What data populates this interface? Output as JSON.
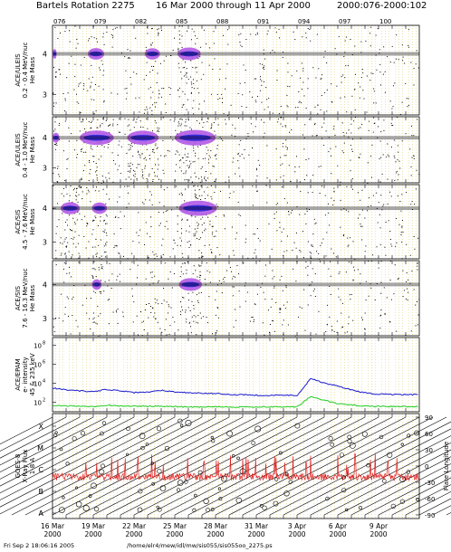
{
  "header": {
    "title": "Bartels Rotation 2275",
    "date_range": "16 Mar 2000 through 11 Apr 2000",
    "doy_range": "2000:076-2000:102"
  },
  "footer": {
    "timestamp": "Fri Sep  2 18:06:16 2005",
    "path": "/home/elr4/mew/idl/mw/sis055/sis055oo_2275.ps"
  },
  "doy_ticks": [
    "076",
    "079",
    "082",
    "085",
    "088",
    "091",
    "094",
    "097",
    "100"
  ],
  "date_ticks": [
    {
      "day": "16 Mar",
      "year": "2000"
    },
    {
      "day": "19 Mar",
      "year": "2000"
    },
    {
      "day": "22 Mar",
      "year": "2000"
    },
    {
      "day": "25 Mar",
      "year": "2000"
    },
    {
      "day": "28 Mar",
      "year": "2000"
    },
    {
      "day": "31 Mar",
      "year": "2000"
    },
    {
      "day": "3 Apr",
      "year": "2000"
    },
    {
      "day": "6 Apr",
      "year": "2000"
    },
    {
      "day": "9 Apr",
      "year": "2000"
    }
  ],
  "colors": {
    "high": "#2222dd",
    "mid": "#b35ae6",
    "scatter": "#000000",
    "grid": "#e0d070",
    "epam_high": "#1a1acc",
    "epam_low": "#22cc22",
    "xray": "#e02020"
  },
  "chart_data": [
    {
      "type": "scatter",
      "ylabel": [
        "ACE/ULEIS",
        "0.2 - 0.4 MeV/nuc",
        "He Mass"
      ],
      "yticks": [
        "4",
        "3"
      ],
      "ylim": [
        2.5,
        4.7
      ],
      "bands": [
        [
          0.0,
          0.3
        ],
        [
          2.6,
          3.8
        ],
        [
          6.8,
          7.9
        ],
        [
          9.2,
          10.9
        ]
      ]
    },
    {
      "type": "scatter",
      "ylabel": [
        "ACE/ULEIS",
        "0.4 - 1.0 MeV/nuc",
        "He Mass"
      ],
      "yticks": [
        "4",
        "3"
      ],
      "ylim": [
        2.5,
        4.7
      ],
      "bands": [
        [
          0.0,
          0.5
        ],
        [
          2.0,
          4.5
        ],
        [
          5.5,
          7.8
        ],
        [
          9.0,
          12.0
        ]
      ]
    },
    {
      "type": "scatter",
      "ylabel": [
        "ACE/SIS",
        "4.5 - 7.6 MeV/nuc",
        "He Mass"
      ],
      "yticks": [
        "4",
        "3"
      ],
      "ylim": [
        2.5,
        4.7
      ],
      "bands": [
        [
          0.6,
          2.0
        ],
        [
          2.9,
          4.0
        ],
        [
          9.3,
          12.1
        ]
      ]
    },
    {
      "type": "scatter",
      "ylabel": [
        "ACE/SIS",
        "7.6 - 16.3 MeV/nuc",
        "He Mass"
      ],
      "yticks": [
        "4",
        "3"
      ],
      "ylim": [
        2.5,
        4.7
      ],
      "bands": [
        [
          2.9,
          3.6
        ],
        [
          9.3,
          11.0
        ]
      ]
    },
    {
      "type": "line",
      "ylabel": [
        "ACE/EPAM",
        "e- intensity",
        "45 & 235 keV"
      ],
      "log_ticks": [
        "10",
        "10",
        "10",
        "10"
      ],
      "log_exps": [
        "8",
        "6",
        "4",
        "2"
      ],
      "series": [
        {
          "x": [
            0,
            1,
            2,
            3,
            4,
            5,
            6,
            7,
            8,
            9,
            10,
            11,
            12,
            13,
            14,
            15,
            16,
            17,
            18,
            19,
            20,
            21,
            22,
            23,
            24,
            25,
            26,
            27
          ],
          "y": [
            3.5,
            3.3,
            3.2,
            3.1,
            3.35,
            3.2,
            3.0,
            3.05,
            3.25,
            3.1,
            3.0,
            2.95,
            2.9,
            2.8,
            2.8,
            2.75,
            2.7,
            2.75,
            2.7,
            4.5,
            4.0,
            3.7,
            3.3,
            3.0,
            2.85,
            2.8,
            2.8,
            2.8
          ]
        },
        {
          "x": [
            0,
            1,
            2,
            3,
            4,
            5,
            6,
            7,
            8,
            9,
            10,
            11,
            12,
            13,
            14,
            15,
            16,
            17,
            18,
            19,
            20,
            21,
            22,
            23,
            24,
            25,
            26,
            27
          ],
          "y": [
            1.65,
            1.6,
            1.6,
            1.55,
            1.7,
            1.6,
            1.6,
            1.55,
            1.6,
            1.55,
            1.5,
            1.5,
            1.55,
            1.5,
            1.5,
            1.5,
            1.5,
            1.5,
            1.5,
            2.6,
            2.2,
            1.85,
            1.7,
            1.6,
            1.55,
            1.55,
            1.55,
            1.55
          ]
        }
      ]
    },
    {
      "type": "scatter",
      "ylabel": [
        "GOES-8",
        "X-Ray Flux",
        "1-8 A"
      ],
      "class_labels": [
        "X",
        "M",
        "C",
        "B",
        "A"
      ],
      "right_ylabel": "Flare Longitude",
      "right_ticks": [
        "90",
        "60",
        "30",
        "0",
        "-30",
        "-60",
        "-90"
      ],
      "right_ylim": [
        -90,
        90
      ]
    }
  ]
}
